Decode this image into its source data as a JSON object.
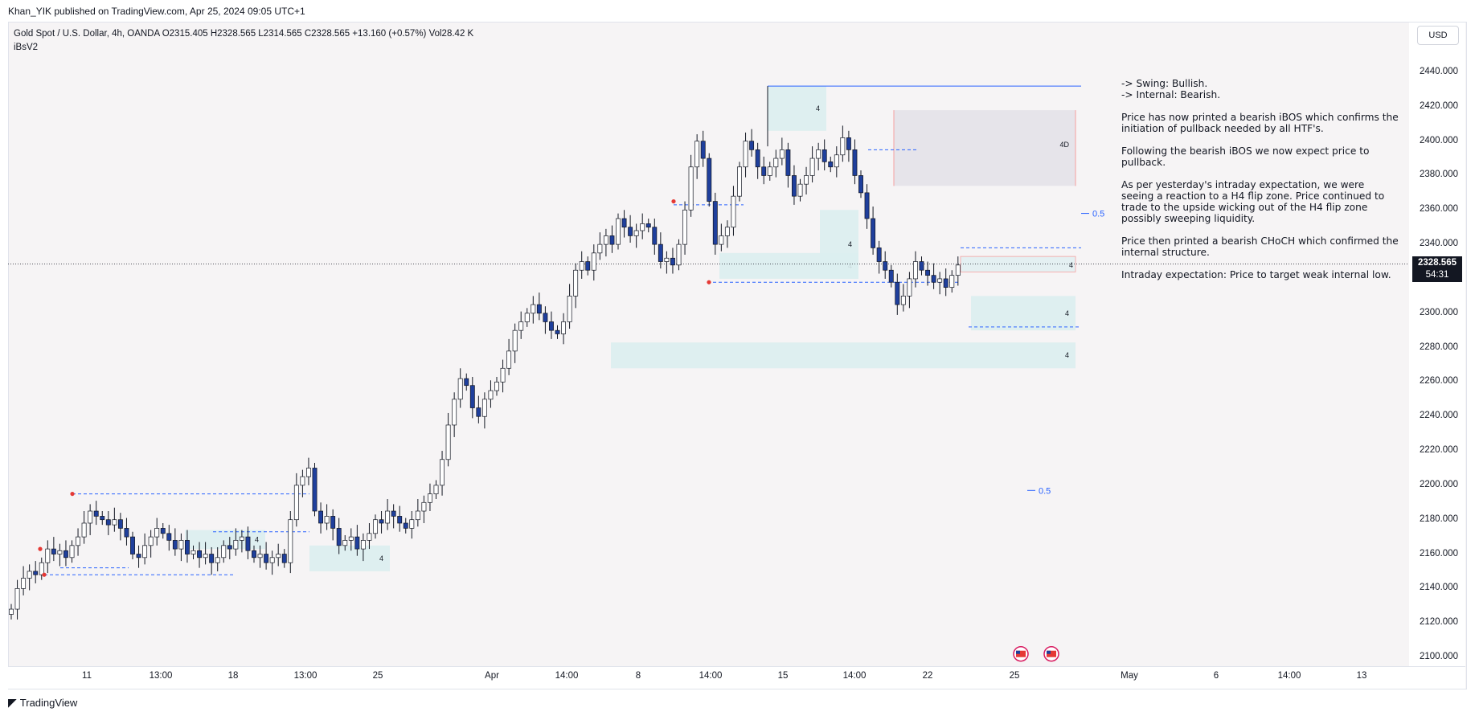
{
  "publisher": "Khan_YIK published on TradingView.com, Apr 25, 2024 09:05 UTC+1",
  "legend": {
    "line1": "Gold Spot / U.S. Dollar, 4h, OANDA  O2315.405  H2328.565  L2314.565  C2328.565  +13.160 (+0.57%)  Vol28.42 K",
    "line2": "iBsV2"
  },
  "currency_button": "USD",
  "last_price": {
    "value": "2328.565",
    "countdown": "54:31"
  },
  "brand": "TradingView",
  "notes": [
    "-> Swing:  Bullish.\n-> Internal:  Bearish.",
    "Price has now printed a bearish iBOS which confirms the initiation of pullback needed by all HTF's.",
    "Following the bearish iBOS we now expect price to pullback.",
    "As per yesterday's intraday expectation, we were seeing a reaction to a H4 flip zone.  Price continued to trade to the upside wicking out of the H4 flip zone possibly sweeping liquidity.",
    "Price then printed a bearish CHoCH which confirmed the internal structure.",
    "Intraday expectation:  Price to target weak internal low."
  ],
  "colors": {
    "background": "#f6f4f5",
    "up_candle": "#ffffff",
    "down_candle": "#1f3f9c",
    "zone": "#dbeef0",
    "dashed": "#2962ff",
    "swing_point": "#e53935"
  },
  "chart_data": {
    "type": "candlestick",
    "symbol": "Gold Spot / U.S. Dollar, 4h, OANDA",
    "ylim": [
      2090,
      2450
    ],
    "y_ticks": [
      "2440.000",
      "2420.000",
      "2400.000",
      "2380.000",
      "2360.000",
      "2340.000",
      "2320.000",
      "2300.000",
      "2280.000",
      "2260.000",
      "2240.000",
      "2220.000",
      "2200.000",
      "2180.000",
      "2160.000",
      "2140.000",
      "2120.000",
      "2100.000"
    ],
    "x_ticks": [
      "11",
      "13:00",
      "18",
      "13:00",
      "25",
      "Apr",
      "14:00",
      "8",
      "14:00",
      "15",
      "14:00",
      "22",
      "25",
      "May",
      "6",
      "14:00",
      "13"
    ],
    "annotations": [
      "0.5",
      "0.5",
      "4",
      "4",
      "4",
      "4",
      "4",
      "4",
      "4",
      "4",
      "4",
      "4D"
    ],
    "levels": [
      2432,
      2328.565
    ],
    "zones": [
      {
        "label": "4",
        "top": 2310,
        "bottom": 2290
      },
      {
        "label": "4",
        "top": 2283,
        "bottom": 2268
      },
      {
        "label": "4D",
        "top": 2418,
        "bottom": 2374
      },
      {
        "label": "4",
        "top": 2333,
        "bottom": 2324
      }
    ],
    "closes": [
      2128,
      2140,
      2146,
      2150,
      2148,
      2155,
      2163,
      2160,
      2162,
      2158,
      2165,
      2170,
      2178,
      2185,
      2182,
      2180,
      2177,
      2180,
      2175,
      2170,
      2160,
      2158,
      2165,
      2170,
      2175,
      2172,
      2168,
      2163,
      2168,
      2160,
      2162,
      2158,
      2160,
      2155,
      2158,
      2165,
      2163,
      2168,
      2170,
      2162,
      2158,
      2160,
      2155,
      2158,
      2160,
      2155,
      2180,
      2200,
      2205,
      2210,
      2185,
      2178,
      2182,
      2175,
      2165,
      2168,
      2170,
      2163,
      2168,
      2172,
      2180,
      2178,
      2185,
      2182,
      2178,
      2175,
      2180,
      2185,
      2190,
      2195,
      2200,
      2215,
      2235,
      2250,
      2262,
      2258,
      2245,
      2240,
      2250,
      2255,
      2260,
      2268,
      2278,
      2290,
      2295,
      2300,
      2305,
      2300,
      2295,
      2290,
      2288,
      2295,
      2310,
      2325,
      2330,
      2325,
      2335,
      2340,
      2345,
      2340,
      2355,
      2350,
      2345,
      2348,
      2352,
      2350,
      2340,
      2330,
      2332,
      2328,
      2340,
      2360,
      2385,
      2400,
      2390,
      2365,
      2340,
      2345,
      2350,
      2368,
      2385,
      2400,
      2395,
      2385,
      2380,
      2385,
      2390,
      2395,
      2380,
      2368,
      2375,
      2380,
      2390,
      2395,
      2388,
      2385,
      2392,
      2402,
      2395,
      2380,
      2370,
      2355,
      2338,
      2330,
      2325,
      2318,
      2305,
      2310,
      2320,
      2330,
      2325,
      2322,
      2318,
      2320,
      2315,
      2322,
      2328
    ]
  }
}
